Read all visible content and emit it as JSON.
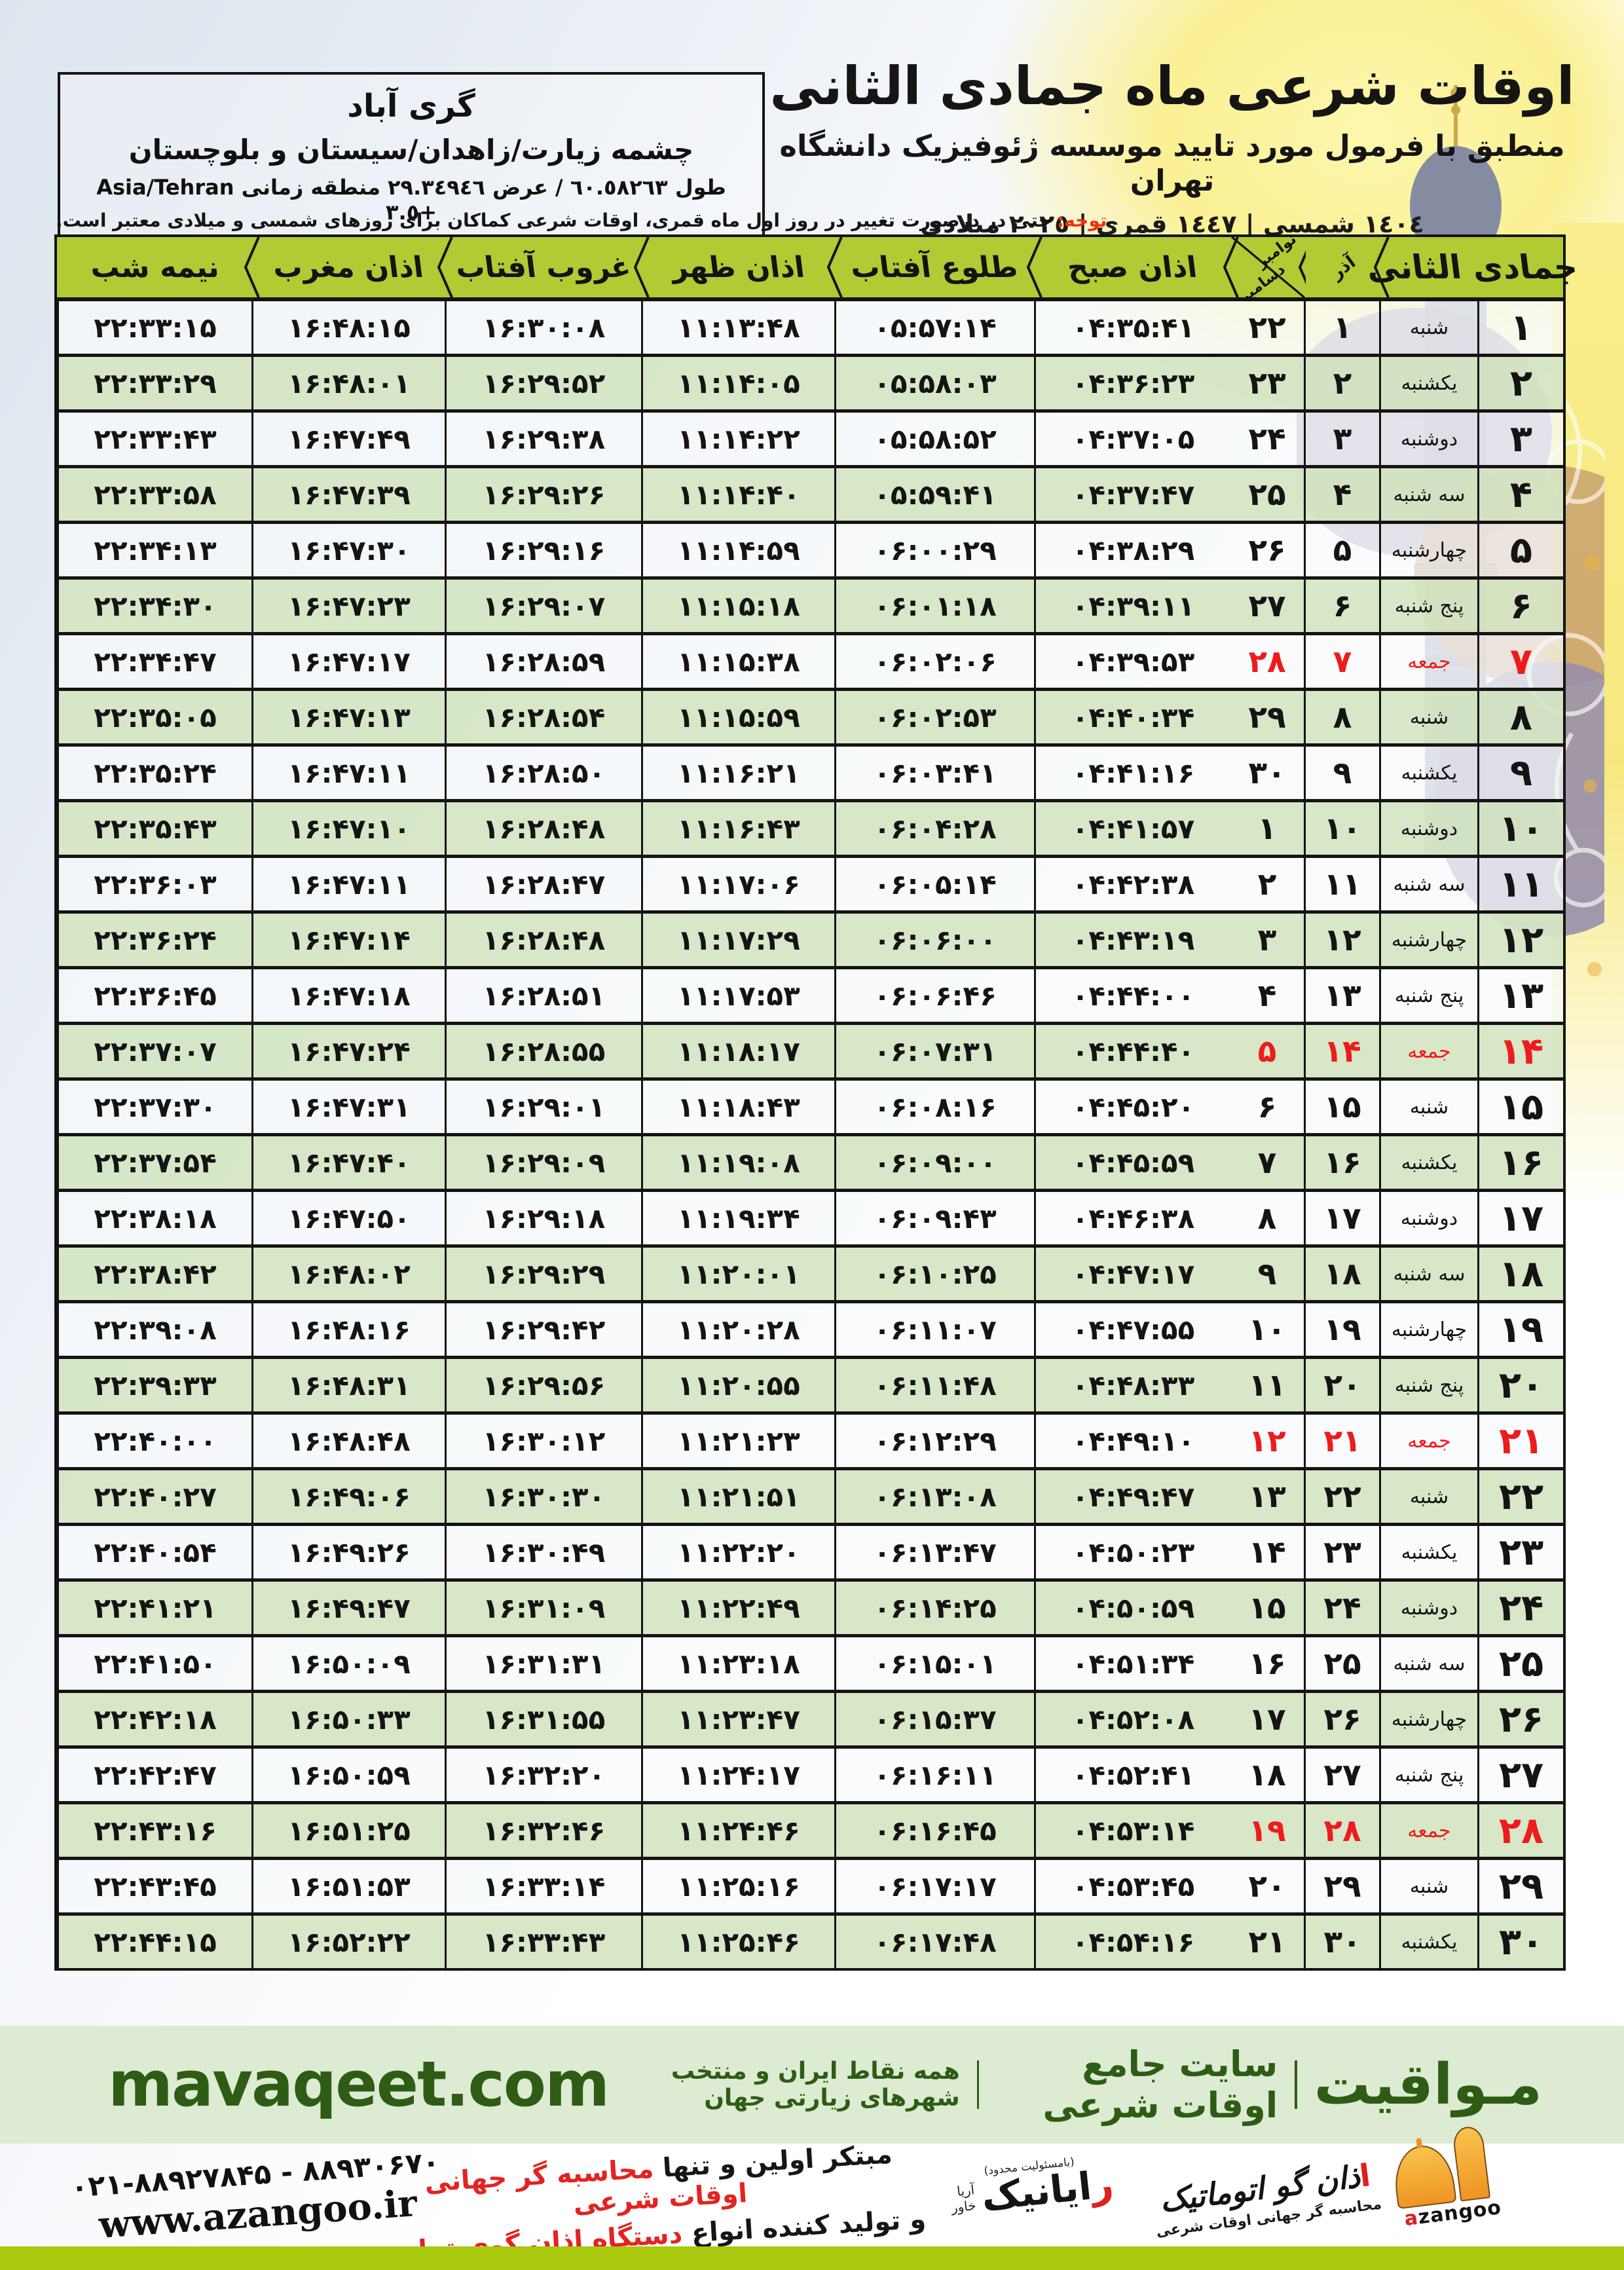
{
  "header": {
    "title": "اوقات شرعی ماه جمادی الثانی",
    "subtitle": "منطبق با فرمول مورد تایید موسسه ژئوفیزیک دانشگاه تهران",
    "dates_line": "١٤٠٤ شمسی | ١٤٤٧ قمری | ٢٠٢٥ میلادی"
  },
  "location": {
    "city": "گری آباد",
    "region": "چشمه زیارت/زاهدان/سیستان و بلوچستان",
    "coords": "طول ٦٠.٥٨٢٦٣ / عرض ٢٩.٣٤٩٤٦ منطقه زمانی Asia/Tehran +٣.٥"
  },
  "note": {
    "label": "توجه:",
    "text": "حتی در درصورت تغییر در روز اول ماه قمری، اوقات شرعی کماکان برای روزهای شمسی و میلادی معتبر است."
  },
  "table": {
    "month_header": "جمادی الثانی",
    "azar_header": "آذر",
    "miladi_header_top": "نوامبر",
    "miladi_header_bottom": "دسامبر",
    "time_headers": [
      "اذان صبح",
      "طلوع آفتاب",
      "اذان ظهر",
      "غروب آفتاب",
      "اذان مغرب",
      "نیمه شب"
    ],
    "digits": "persian",
    "rows": [
      {
        "day": "1",
        "weekday": "شنبه",
        "azar": "1",
        "miladi": "22",
        "fajr": "04:35:41",
        "sunrise": "05:57:14",
        "dhuhr": "11:13:48",
        "sunset": "16:30:08",
        "maghrib": "16:48:15",
        "midnight": "22:33:15",
        "friday": false
      },
      {
        "day": "2",
        "weekday": "یکشنبه",
        "azar": "2",
        "miladi": "23",
        "fajr": "04:36:23",
        "sunrise": "05:58:03",
        "dhuhr": "11:14:05",
        "sunset": "16:29:52",
        "maghrib": "16:48:01",
        "midnight": "22:33:29",
        "friday": false
      },
      {
        "day": "3",
        "weekday": "دوشنبه",
        "azar": "3",
        "miladi": "24",
        "fajr": "04:37:05",
        "sunrise": "05:58:52",
        "dhuhr": "11:14:22",
        "sunset": "16:29:38",
        "maghrib": "16:47:49",
        "midnight": "22:33:43",
        "friday": false
      },
      {
        "day": "4",
        "weekday": "سه شنبه",
        "azar": "4",
        "miladi": "25",
        "fajr": "04:37:47",
        "sunrise": "05:59:41",
        "dhuhr": "11:14:40",
        "sunset": "16:29:26",
        "maghrib": "16:47:39",
        "midnight": "22:33:58",
        "friday": false
      },
      {
        "day": "5",
        "weekday": "چهارشنبه",
        "azar": "5",
        "miladi": "26",
        "fajr": "04:38:29",
        "sunrise": "06:00:29",
        "dhuhr": "11:14:59",
        "sunset": "16:29:16",
        "maghrib": "16:47:30",
        "midnight": "22:34:13",
        "friday": false
      },
      {
        "day": "6",
        "weekday": "پنج شنبه",
        "azar": "6",
        "miladi": "27",
        "fajr": "04:39:11",
        "sunrise": "06:01:18",
        "dhuhr": "11:15:18",
        "sunset": "16:29:07",
        "maghrib": "16:47:23",
        "midnight": "22:34:30",
        "friday": false
      },
      {
        "day": "7",
        "weekday": "جمعه",
        "azar": "7",
        "miladi": "28",
        "fajr": "04:39:53",
        "sunrise": "06:02:06",
        "dhuhr": "11:15:38",
        "sunset": "16:28:59",
        "maghrib": "16:47:17",
        "midnight": "22:34:47",
        "friday": true
      },
      {
        "day": "8",
        "weekday": "شنبه",
        "azar": "8",
        "miladi": "29",
        "fajr": "04:40:34",
        "sunrise": "06:02:53",
        "dhuhr": "11:15:59",
        "sunset": "16:28:54",
        "maghrib": "16:47:13",
        "midnight": "22:35:05",
        "friday": false
      },
      {
        "day": "9",
        "weekday": "یکشنبه",
        "azar": "9",
        "miladi": "30",
        "fajr": "04:41:16",
        "sunrise": "06:03:41",
        "dhuhr": "11:16:21",
        "sunset": "16:28:50",
        "maghrib": "16:47:11",
        "midnight": "22:35:24",
        "friday": false
      },
      {
        "day": "10",
        "weekday": "دوشنبه",
        "azar": "10",
        "miladi": "1",
        "fajr": "04:41:57",
        "sunrise": "06:04:28",
        "dhuhr": "11:16:43",
        "sunset": "16:28:48",
        "maghrib": "16:47:10",
        "midnight": "22:35:43",
        "friday": false
      },
      {
        "day": "11",
        "weekday": "سه شنبه",
        "azar": "11",
        "miladi": "2",
        "fajr": "04:42:38",
        "sunrise": "06:05:14",
        "dhuhr": "11:17:06",
        "sunset": "16:28:47",
        "maghrib": "16:47:11",
        "midnight": "22:36:03",
        "friday": false
      },
      {
        "day": "12",
        "weekday": "چهارشنبه",
        "azar": "12",
        "miladi": "3",
        "fajr": "04:43:19",
        "sunrise": "06:06:00",
        "dhuhr": "11:17:29",
        "sunset": "16:28:48",
        "maghrib": "16:47:14",
        "midnight": "22:36:24",
        "friday": false
      },
      {
        "day": "13",
        "weekday": "پنج شنبه",
        "azar": "13",
        "miladi": "4",
        "fajr": "04:44:00",
        "sunrise": "06:06:46",
        "dhuhr": "11:17:53",
        "sunset": "16:28:51",
        "maghrib": "16:47:18",
        "midnight": "22:36:45",
        "friday": false
      },
      {
        "day": "14",
        "weekday": "جمعه",
        "azar": "14",
        "miladi": "5",
        "fajr": "04:44:40",
        "sunrise": "06:07:31",
        "dhuhr": "11:18:17",
        "sunset": "16:28:55",
        "maghrib": "16:47:24",
        "midnight": "22:37:07",
        "friday": true
      },
      {
        "day": "15",
        "weekday": "شنبه",
        "azar": "15",
        "miladi": "6",
        "fajr": "04:45:20",
        "sunrise": "06:08:16",
        "dhuhr": "11:18:43",
        "sunset": "16:29:01",
        "maghrib": "16:47:31",
        "midnight": "22:37:30",
        "friday": false
      },
      {
        "day": "16",
        "weekday": "یکشنبه",
        "azar": "16",
        "miladi": "7",
        "fajr": "04:45:59",
        "sunrise": "06:09:00",
        "dhuhr": "11:19:08",
        "sunset": "16:29:09",
        "maghrib": "16:47:40",
        "midnight": "22:37:54",
        "friday": false
      },
      {
        "day": "17",
        "weekday": "دوشنبه",
        "azar": "17",
        "miladi": "8",
        "fajr": "04:46:38",
        "sunrise": "06:09:43",
        "dhuhr": "11:19:34",
        "sunset": "16:29:18",
        "maghrib": "16:47:50",
        "midnight": "22:38:18",
        "friday": false
      },
      {
        "day": "18",
        "weekday": "سه شنبه",
        "azar": "18",
        "miladi": "9",
        "fajr": "04:47:17",
        "sunrise": "06:10:25",
        "dhuhr": "11:20:01",
        "sunset": "16:29:29",
        "maghrib": "16:48:02",
        "midnight": "22:38:42",
        "friday": false
      },
      {
        "day": "19",
        "weekday": "چهارشنبه",
        "azar": "19",
        "miladi": "10",
        "fajr": "04:47:55",
        "sunrise": "06:11:07",
        "dhuhr": "11:20:28",
        "sunset": "16:29:42",
        "maghrib": "16:48:16",
        "midnight": "22:39:08",
        "friday": false
      },
      {
        "day": "20",
        "weekday": "پنج شنبه",
        "azar": "20",
        "miladi": "11",
        "fajr": "04:48:33",
        "sunrise": "06:11:48",
        "dhuhr": "11:20:55",
        "sunset": "16:29:56",
        "maghrib": "16:48:31",
        "midnight": "22:39:33",
        "friday": false
      },
      {
        "day": "21",
        "weekday": "جمعه",
        "azar": "21",
        "miladi": "12",
        "fajr": "04:49:10",
        "sunrise": "06:12:29",
        "dhuhr": "11:21:23",
        "sunset": "16:30:12",
        "maghrib": "16:48:48",
        "midnight": "22:40:00",
        "friday": true
      },
      {
        "day": "22",
        "weekday": "شنبه",
        "azar": "22",
        "miladi": "13",
        "fajr": "04:49:47",
        "sunrise": "06:13:08",
        "dhuhr": "11:21:51",
        "sunset": "16:30:30",
        "maghrib": "16:49:06",
        "midnight": "22:40:27",
        "friday": false
      },
      {
        "day": "23",
        "weekday": "یکشنبه",
        "azar": "23",
        "miladi": "14",
        "fajr": "04:50:23",
        "sunrise": "06:13:47",
        "dhuhr": "11:22:20",
        "sunset": "16:30:49",
        "maghrib": "16:49:26",
        "midnight": "22:40:54",
        "friday": false
      },
      {
        "day": "24",
        "weekday": "دوشنبه",
        "azar": "24",
        "miladi": "15",
        "fajr": "04:50:59",
        "sunrise": "06:14:25",
        "dhuhr": "11:22:49",
        "sunset": "16:31:09",
        "maghrib": "16:49:47",
        "midnight": "22:41:21",
        "friday": false
      },
      {
        "day": "25",
        "weekday": "سه شنبه",
        "azar": "25",
        "miladi": "16",
        "fajr": "04:51:34",
        "sunrise": "06:15:01",
        "dhuhr": "11:23:18",
        "sunset": "16:31:31",
        "maghrib": "16:50:09",
        "midnight": "22:41:50",
        "friday": false
      },
      {
        "day": "26",
        "weekday": "چهارشنبه",
        "azar": "26",
        "miladi": "17",
        "fajr": "04:52:08",
        "sunrise": "06:15:37",
        "dhuhr": "11:23:47",
        "sunset": "16:31:55",
        "maghrib": "16:50:33",
        "midnight": "22:42:18",
        "friday": false
      },
      {
        "day": "27",
        "weekday": "پنج شنبه",
        "azar": "27",
        "miladi": "18",
        "fajr": "04:52:41",
        "sunrise": "06:16:11",
        "dhuhr": "11:24:17",
        "sunset": "16:32:20",
        "maghrib": "16:50:59",
        "midnight": "22:42:47",
        "friday": false
      },
      {
        "day": "28",
        "weekday": "جمعه",
        "azar": "28",
        "miladi": "19",
        "fajr": "04:53:14",
        "sunrise": "06:16:45",
        "dhuhr": "11:24:46",
        "sunset": "16:32:46",
        "maghrib": "16:51:25",
        "midnight": "22:43:16",
        "friday": true
      },
      {
        "day": "29",
        "weekday": "شنبه",
        "azar": "29",
        "miladi": "20",
        "fajr": "04:53:45",
        "sunrise": "06:17:17",
        "dhuhr": "11:25:16",
        "sunset": "16:33:14",
        "maghrib": "16:51:53",
        "midnight": "22:43:45",
        "friday": false
      },
      {
        "day": "30",
        "weekday": "یکشنبه",
        "azar": "30",
        "miladi": "21",
        "fajr": "04:54:16",
        "sunrise": "06:17:48",
        "dhuhr": "11:25:46",
        "sunset": "16:33:43",
        "maghrib": "16:52:22",
        "midnight": "22:44:15",
        "friday": false
      }
    ]
  },
  "footer": {
    "site": "mavaqeet.com",
    "brand_name": "مـواقیت",
    "brand_tag": "سایت جامع اوقات شرعی",
    "brand_sub": "همه نقاط ایران و منتخب شهرهای زیارتی جهان",
    "phone": "۰۲۱-۸۸۹۲۷۸۴۵ - ۸۸۹۳۰۶۷۰",
    "website": "www.azangoo.ir",
    "line1_black": "مبتکر اولین و تنها",
    "line1_red": "محاسبه گر جهانی اوقات شرعی",
    "line2_black": "و تولید کننده انواع",
    "line2_red": "دستگاه اذان گوی تمام خودکار ماهواره ای",
    "rayanik_note": "(بامسئولیت محدود)",
    "rayanik_initial": "ر",
    "rayanik_rest": "ایانیک",
    "rayanik_sub1": "خاور",
    "rayanik_sub2": "آریا",
    "azangoo_initial": "ا",
    "azangoo_rest": "ذان گو اتوماتیک",
    "azangoo_sub": "محاسبه گر جهانی اوقات شرعی",
    "azangoo_latin_a": "a",
    "azangoo_latin_rest": "zangoo"
  },
  "colors": {
    "header_green": "#b2ca33",
    "row_green": "#d5e5c3",
    "friday_red": "#ee1b1d",
    "footer_band_green": "#dcebd2",
    "footer_text_green": "#2e5c15",
    "bottom_band_green": "#a9c80e"
  }
}
